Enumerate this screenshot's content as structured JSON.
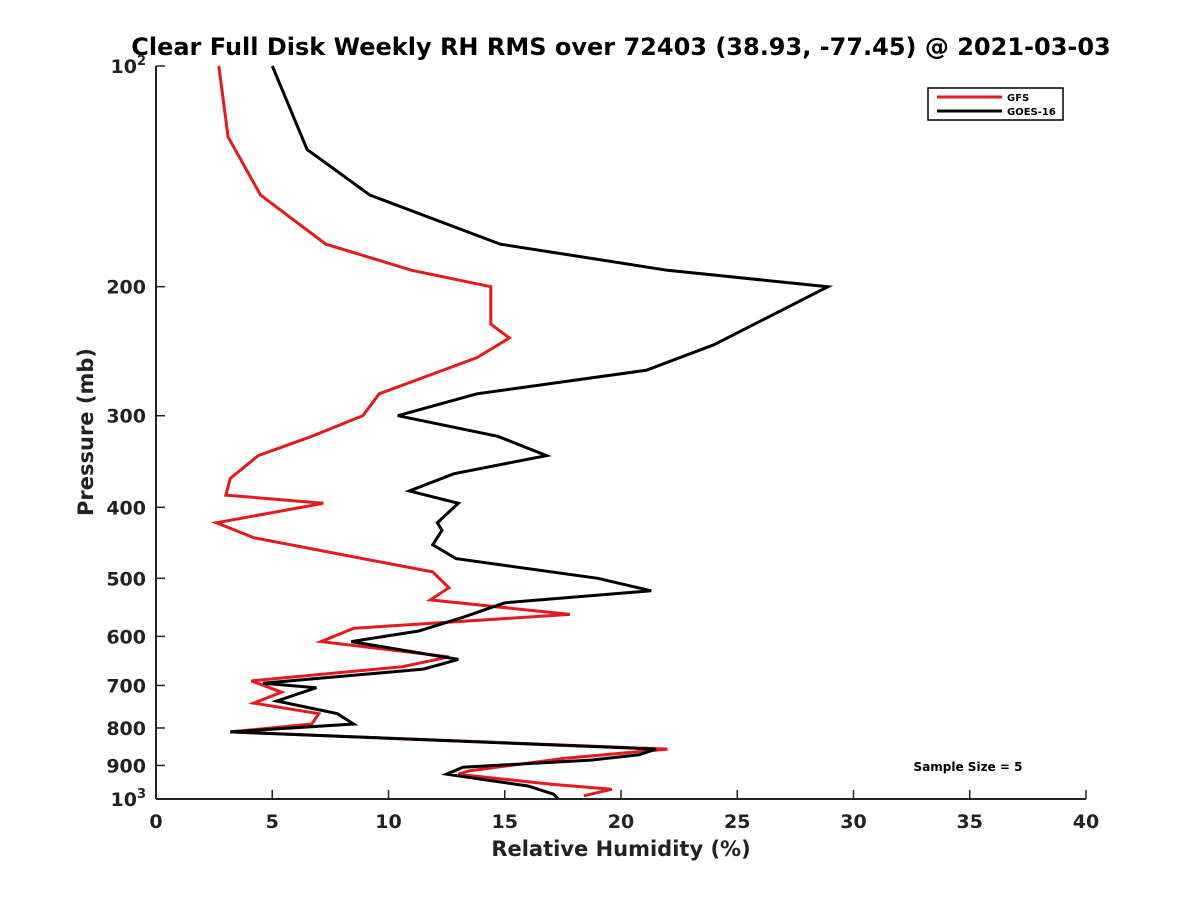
{
  "chart_data": {
    "type": "line",
    "title": "Clear Full Disk Weekly RH RMS over 72403 (38.93, -77.45) @ 2021-03-03",
    "xlabel": "Relative Humidity (%)",
    "ylabel": "Pressure (mb)",
    "xlim": [
      0,
      40
    ],
    "ylim": [
      100,
      1000
    ],
    "yscale": "log",
    "y_reversed": true,
    "grid": false,
    "legend_position": "top-right",
    "x_ticks": [
      "0",
      "5",
      "10",
      "15",
      "20",
      "25",
      "30",
      "35",
      "40"
    ],
    "x_tick_values": [
      0,
      5,
      10,
      15,
      20,
      25,
      30,
      35,
      40
    ],
    "y_ticks": [
      {
        "value": 100,
        "base": "10",
        "exp": "2"
      },
      {
        "value": 200,
        "label": "200"
      },
      {
        "value": 300,
        "label": "300"
      },
      {
        "value": 400,
        "label": "400"
      },
      {
        "value": 500,
        "label": "500"
      },
      {
        "value": 600,
        "label": "600"
      },
      {
        "value": 700,
        "label": "700"
      },
      {
        "value": 800,
        "label": "800"
      },
      {
        "value": 900,
        "label": "900"
      },
      {
        "value": 1000,
        "base": "10",
        "exp": "3"
      }
    ],
    "annotation": "Sample Size = 5",
    "series": [
      {
        "name": "GFS",
        "color": "#e41a1c",
        "points": [
          [
            2.7,
            100
          ],
          [
            3.1,
            125
          ],
          [
            4.5,
            150
          ],
          [
            7.3,
            175
          ],
          [
            11.0,
            190
          ],
          [
            14.4,
            200
          ],
          [
            14.4,
            225
          ],
          [
            15.2,
            235
          ],
          [
            13.8,
            250
          ],
          [
            9.6,
            280
          ],
          [
            8.9,
            300
          ],
          [
            6.7,
            320
          ],
          [
            4.4,
            340
          ],
          [
            3.2,
            365
          ],
          [
            3.0,
            385
          ],
          [
            7.2,
            395
          ],
          [
            2.6,
            420
          ],
          [
            4.2,
            440
          ],
          [
            8.9,
            470
          ],
          [
            11.9,
            490
          ],
          [
            12.6,
            515
          ],
          [
            11.8,
            535
          ],
          [
            17.8,
            560
          ],
          [
            8.5,
            585
          ],
          [
            7.1,
            610
          ],
          [
            12.6,
            640
          ],
          [
            10.6,
            660
          ],
          [
            4.1,
            690
          ],
          [
            5.4,
            715
          ],
          [
            4.2,
            740
          ],
          [
            7.0,
            765
          ],
          [
            6.7,
            790
          ],
          [
            3.2,
            810
          ],
          [
            22.0,
            855
          ],
          [
            17.6,
            880
          ],
          [
            13.5,
            915
          ],
          [
            13.0,
            925
          ],
          [
            17.0,
            955
          ],
          [
            19.6,
            970
          ],
          [
            18.4,
            990
          ]
        ]
      },
      {
        "name": "GOES-16",
        "color": "#000000",
        "points": [
          [
            5.0,
            100
          ],
          [
            6.5,
            130
          ],
          [
            9.2,
            150
          ],
          [
            14.8,
            175
          ],
          [
            22.0,
            190
          ],
          [
            28.9,
            200
          ],
          [
            24.0,
            240
          ],
          [
            21.1,
            260
          ],
          [
            13.8,
            280
          ],
          [
            10.4,
            300
          ],
          [
            14.7,
            320
          ],
          [
            16.8,
            340
          ],
          [
            12.8,
            360
          ],
          [
            10.9,
            380
          ],
          [
            13.0,
            395
          ],
          [
            12.1,
            420
          ],
          [
            12.3,
            430
          ],
          [
            11.9,
            450
          ],
          [
            12.9,
            470
          ],
          [
            19.0,
            500
          ],
          [
            21.3,
            520
          ],
          [
            15.0,
            540
          ],
          [
            13.2,
            565
          ],
          [
            11.3,
            590
          ],
          [
            8.4,
            610
          ],
          [
            13.0,
            645
          ],
          [
            11.5,
            665
          ],
          [
            4.6,
            695
          ],
          [
            6.9,
            705
          ],
          [
            5.2,
            735
          ],
          [
            7.8,
            765
          ],
          [
            8.5,
            790
          ],
          [
            3.2,
            810
          ],
          [
            21.5,
            855
          ],
          [
            20.8,
            870
          ],
          [
            18.7,
            885
          ],
          [
            13.2,
            905
          ],
          [
            12.5,
            925
          ],
          [
            16.0,
            960
          ],
          [
            17.1,
            985
          ],
          [
            17.3,
            1000
          ]
        ]
      }
    ]
  }
}
